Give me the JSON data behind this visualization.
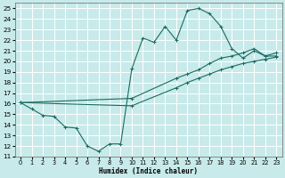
{
  "xlabel": "Humidex (Indice chaleur)",
  "bg_color": "#c8eaea",
  "grid_color": "#ffffff",
  "line_color": "#1a6b60",
  "xlim": [
    -0.5,
    23.5
  ],
  "ylim": [
    11,
    25.5
  ],
  "yticks": [
    11,
    12,
    13,
    14,
    15,
    16,
    17,
    18,
    19,
    20,
    21,
    22,
    23,
    24,
    25
  ],
  "xticks": [
    0,
    1,
    2,
    3,
    4,
    5,
    6,
    7,
    8,
    9,
    10,
    11,
    12,
    13,
    14,
    15,
    16,
    17,
    18,
    19,
    20,
    21,
    22,
    23
  ],
  "line1_x": [
    0,
    1,
    2,
    3,
    4,
    5,
    6,
    7,
    8,
    9,
    10,
    11,
    12,
    13,
    14,
    15,
    16,
    17,
    18,
    19,
    20,
    21,
    22,
    23
  ],
  "line1_y": [
    16.1,
    15.5,
    14.9,
    14.8,
    13.8,
    13.7,
    12.0,
    11.5,
    12.2,
    12.2,
    19.3,
    22.2,
    21.8,
    23.3,
    22.0,
    24.8,
    25.0,
    24.5,
    23.3,
    21.2,
    20.3,
    21.0,
    20.5,
    20.5
  ],
  "line2_x": [
    0,
    10,
    14,
    15,
    16,
    17,
    18,
    19,
    20,
    21,
    22,
    23
  ],
  "line2_y": [
    16.1,
    16.5,
    18.4,
    18.8,
    19.2,
    19.8,
    20.3,
    20.5,
    20.8,
    21.2,
    20.5,
    20.8
  ],
  "line3_x": [
    0,
    10,
    14,
    15,
    16,
    17,
    18,
    19,
    20,
    21,
    22,
    23
  ],
  "line3_y": [
    16.1,
    15.8,
    17.5,
    18.0,
    18.4,
    18.8,
    19.2,
    19.5,
    19.8,
    20.0,
    20.2,
    20.4
  ]
}
